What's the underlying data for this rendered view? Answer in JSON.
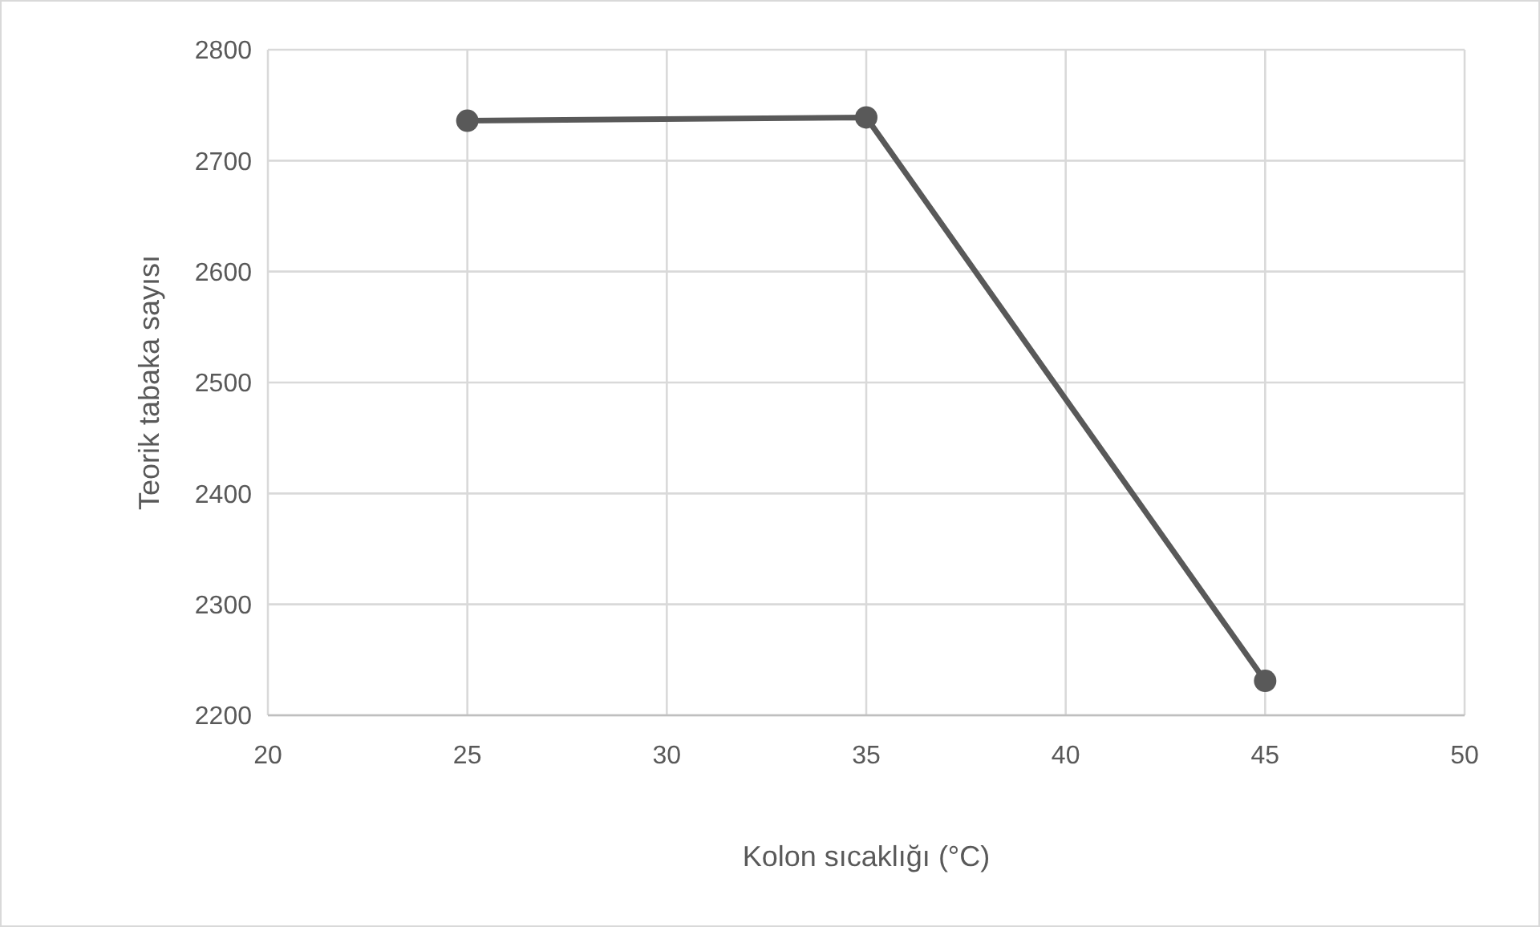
{
  "chart_data": {
    "type": "line",
    "xlabel": "Kolon sıcaklığı (°C)",
    "ylabel": "Teorik tabaka sayısı",
    "x": [
      25,
      35,
      45
    ],
    "series": [
      {
        "color": "#595959",
        "values": [
          2736,
          2739,
          2231
        ]
      }
    ],
    "xlim": [
      20,
      50
    ],
    "xticks": [
      20,
      25,
      30,
      35,
      40,
      45,
      50
    ],
    "ylim": [
      2200,
      2800
    ],
    "yticks": [
      2200,
      2300,
      2400,
      2500,
      2600,
      2700,
      2800
    ],
    "grid": true,
    "marker": "circle",
    "line_style": "solid"
  }
}
